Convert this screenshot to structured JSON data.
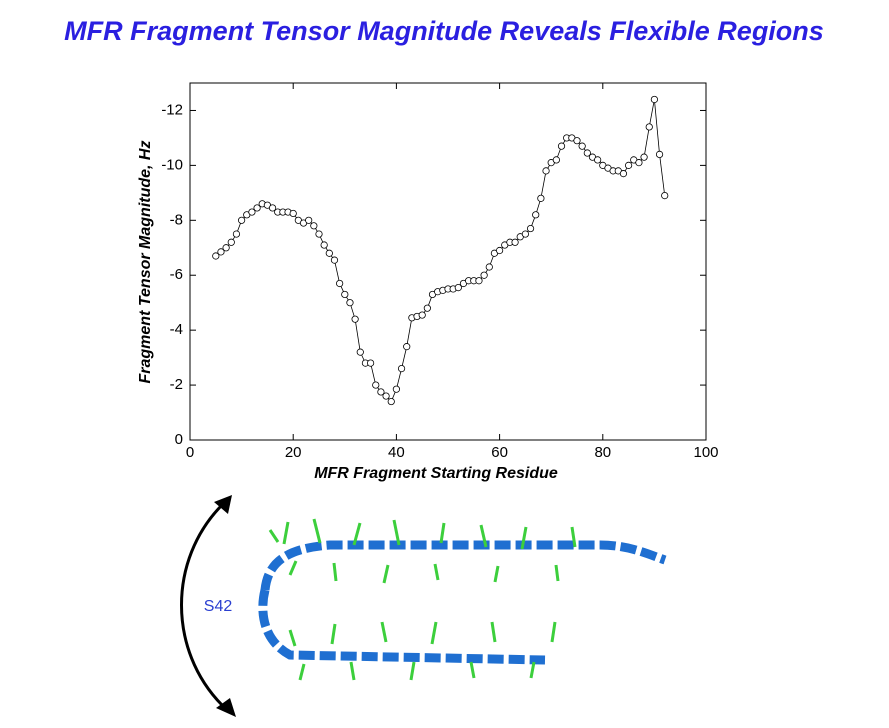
{
  "chart_data": {
    "type": "line",
    "title": "MFR Fragment Tensor Magnitude Reveals Flexible Regions",
    "x_label": "MFR Fragment Starting Residue",
    "y_label": "Fragment Tensor Magnitude, Hz",
    "annotation": "S42",
    "color": "#000000",
    "grid": false,
    "xlim": [
      0,
      100
    ],
    "xticks": [
      0,
      20,
      40,
      60,
      80,
      100
    ],
    "ylim": [
      0,
      -13
    ],
    "yticks": [
      0,
      -2,
      -4,
      -6,
      -8,
      -10,
      -12
    ],
    "x": [
      5,
      6,
      7,
      8,
      9,
      10,
      11,
      12,
      13,
      14,
      15,
      16,
      17,
      18,
      19,
      20,
      21,
      22,
      23,
      24,
      25,
      26,
      27,
      28,
      29,
      30,
      31,
      32,
      33,
      34,
      35,
      36,
      37,
      38,
      39,
      40,
      41,
      42,
      43,
      44,
      45,
      46,
      47,
      48,
      49,
      50,
      51,
      52,
      53,
      54,
      55,
      56,
      57,
      58,
      59,
      60,
      61,
      62,
      63,
      64,
      65,
      66,
      67,
      68,
      69,
      70,
      71,
      72,
      73,
      74,
      75,
      76,
      77,
      78,
      79,
      80,
      81,
      82,
      83,
      84,
      85,
      86,
      87,
      88,
      89,
      90,
      91,
      92
    ],
    "values": [
      -6.7,
      -6.85,
      -7.0,
      -7.2,
      -7.5,
      -8.0,
      -8.2,
      -8.3,
      -8.45,
      -8.6,
      -8.55,
      -8.45,
      -8.3,
      -8.3,
      -8.3,
      -8.25,
      -8.0,
      -7.9,
      -8.0,
      -7.8,
      -7.5,
      -7.1,
      -6.8,
      -6.55,
      -5.7,
      -5.3,
      -5.0,
      -4.4,
      -3.2,
      -2.8,
      -2.8,
      -2.0,
      -1.75,
      -1.6,
      -1.4,
      -1.85,
      -2.6,
      -3.4,
      -4.45,
      -4.5,
      -4.55,
      -4.8,
      -5.3,
      -5.4,
      -5.45,
      -5.5,
      -5.5,
      -5.55,
      -5.7,
      -5.8,
      -5.8,
      -5.8,
      -6.0,
      -6.3,
      -6.8,
      -6.9,
      -7.1,
      -7.2,
      -7.2,
      -7.4,
      -7.5,
      -7.7,
      -8.2,
      -8.8,
      -9.8,
      -10.1,
      -10.2,
      -10.7,
      -11.0,
      -11.0,
      -10.9,
      -10.7,
      -10.45,
      -10.3,
      -10.2,
      -10.0,
      -9.9,
      -9.8,
      -9.8,
      -9.7,
      -10.0,
      -10.2,
      -10.1,
      -10.3,
      -11.4,
      -12.4,
      -10.4,
      -8.9
    ]
  }
}
